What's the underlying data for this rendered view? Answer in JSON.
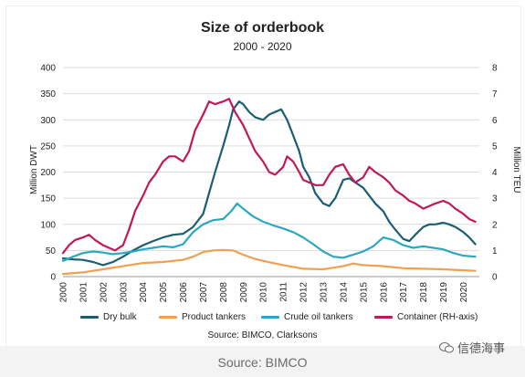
{
  "chart_data": {
    "type": "line",
    "title": "Size of orderbook",
    "subtitle": "2000 - 2020",
    "ylabel": "Million DWT",
    "y2label": "Million TEU",
    "ylim": [
      0,
      400
    ],
    "y2lim": [
      0,
      8
    ],
    "yticks": [
      "0",
      "50",
      "100",
      "150",
      "200",
      "250",
      "300",
      "350",
      "400"
    ],
    "y2ticks": [
      "0",
      "1",
      "2",
      "3",
      "4",
      "5",
      "6",
      "7",
      "8"
    ],
    "xlim": [
      2000,
      2020.8
    ],
    "xticks": [
      "2000",
      "2001",
      "2002",
      "2003",
      "2004",
      "2005",
      "2006",
      "2007",
      "2008",
      "2009",
      "2010",
      "2011",
      "2012",
      "2013",
      "2014",
      "2015",
      "2016",
      "2017",
      "2018",
      "2019",
      "2020"
    ],
    "grid": true,
    "legend_position": "bottom",
    "source": "Source: BIMCO, Clarksons",
    "series": [
      {
        "name": "Dry bulk",
        "color": "#1b5e73",
        "axis": "left",
        "x": [
          2000,
          2000.5,
          2001,
          2001.5,
          2002,
          2002.5,
          2003,
          2003.5,
          2004,
          2004.5,
          2005,
          2005.5,
          2006,
          2006.5,
          2007,
          2007.3,
          2007.6,
          2008,
          2008.3,
          2008.5,
          2008.8,
          2009,
          2009.3,
          2009.6,
          2010,
          2010.3,
          2010.6,
          2010.9,
          2011.2,
          2011.5,
          2011.8,
          2012,
          2012.3,
          2012.6,
          2013,
          2013.3,
          2013.6,
          2014,
          2014.3,
          2014.6,
          2015,
          2015.3,
          2015.6,
          2016,
          2016.3,
          2016.6,
          2017,
          2017.3,
          2017.6,
          2018,
          2018.3,
          2018.6,
          2019,
          2019.3,
          2019.6,
          2020,
          2020.3,
          2020.6
        ],
        "y": [
          35,
          33,
          32,
          28,
          22,
          28,
          38,
          50,
          60,
          68,
          75,
          80,
          82,
          95,
          120,
          160,
          200,
          250,
          290,
          320,
          335,
          330,
          315,
          305,
          300,
          310,
          315,
          320,
          300,
          270,
          240,
          210,
          190,
          160,
          140,
          135,
          150,
          185,
          188,
          180,
          170,
          155,
          140,
          125,
          105,
          90,
          72,
          68,
          80,
          95,
          100,
          100,
          103,
          100,
          95,
          85,
          75,
          62
        ]
      },
      {
        "name": "Product tankers",
        "color": "#f0a050",
        "axis": "left",
        "x": [
          2000,
          2001,
          2002,
          2003,
          2004,
          2005,
          2006,
          2006.5,
          2007,
          2007.5,
          2008,
          2008.5,
          2009,
          2009.5,
          2010,
          2011,
          2012,
          2013,
          2014,
          2014.5,
          2015,
          2016,
          2017,
          2018,
          2019,
          2020,
          2020.6
        ],
        "y": [
          5,
          8,
          14,
          20,
          26,
          28,
          32,
          38,
          47,
          50,
          51,
          50,
          42,
          35,
          30,
          22,
          15,
          14,
          20,
          25,
          22,
          20,
          16,
          15,
          14,
          12,
          11
        ]
      },
      {
        "name": "Crude oil tankers",
        "color": "#2ba8c0",
        "axis": "left",
        "x": [
          2000,
          2000.5,
          2001,
          2001.5,
          2002,
          2002.5,
          2003,
          2003.5,
          2004,
          2004.5,
          2005,
          2005.5,
          2006,
          2006.5,
          2007,
          2007.5,
          2008,
          2008.4,
          2008.7,
          2009,
          2009.5,
          2010,
          2010.5,
          2011,
          2011.5,
          2012,
          2012.5,
          2013,
          2013.5,
          2014,
          2014.5,
          2015,
          2015.5,
          2016,
          2016.5,
          2017,
          2017.5,
          2018,
          2018.5,
          2019,
          2019.5,
          2020,
          2020.6
        ],
        "y": [
          30,
          38,
          45,
          48,
          46,
          43,
          45,
          48,
          52,
          55,
          58,
          56,
          62,
          85,
          100,
          108,
          110,
          125,
          140,
          130,
          115,
          105,
          98,
          92,
          85,
          75,
          62,
          48,
          38,
          36,
          42,
          48,
          58,
          75,
          70,
          60,
          55,
          58,
          55,
          52,
          45,
          40,
          38
        ]
      },
      {
        "name": "Container (RH-axis)",
        "color": "#c0185a",
        "axis": "right",
        "x": [
          2000,
          2000.3,
          2000.6,
          2001,
          2001.3,
          2001.6,
          2002,
          2002.3,
          2002.6,
          2003,
          2003.3,
          2003.6,
          2004,
          2004.3,
          2004.6,
          2005,
          2005.3,
          2005.6,
          2006,
          2006.3,
          2006.6,
          2007,
          2007.3,
          2007.6,
          2008,
          2008.3,
          2008.6,
          2009,
          2009.3,
          2009.6,
          2010,
          2010.3,
          2010.6,
          2011,
          2011.2,
          2011.5,
          2011.8,
          2012,
          2012.3,
          2012.6,
          2013,
          2013.3,
          2013.6,
          2014,
          2014.3,
          2014.6,
          2015,
          2015.3,
          2015.6,
          2016,
          2016.3,
          2016.6,
          2017,
          2017.3,
          2017.6,
          2018,
          2018.3,
          2018.6,
          2019,
          2019.3,
          2019.6,
          2020,
          2020.3,
          2020.6
        ],
        "y": [
          0.9,
          1.2,
          1.4,
          1.5,
          1.6,
          1.4,
          1.2,
          1.1,
          1.0,
          1.2,
          1.8,
          2.5,
          3.1,
          3.6,
          3.9,
          4.4,
          4.6,
          4.6,
          4.4,
          4.8,
          5.6,
          6.2,
          6.7,
          6.6,
          6.7,
          6.8,
          6.3,
          5.8,
          5.3,
          4.8,
          4.4,
          4.0,
          3.9,
          4.2,
          4.6,
          4.4,
          4.0,
          3.7,
          3.6,
          3.5,
          3.5,
          3.9,
          4.2,
          4.3,
          3.9,
          3.6,
          3.8,
          4.2,
          4.0,
          3.8,
          3.6,
          3.3,
          3.1,
          2.9,
          2.8,
          2.6,
          2.7,
          2.8,
          2.9,
          2.8,
          2.6,
          2.4,
          2.2,
          2.1
        ]
      }
    ]
  },
  "footer": {
    "source": "Source: BIMCO",
    "watermark": "信德海事"
  }
}
